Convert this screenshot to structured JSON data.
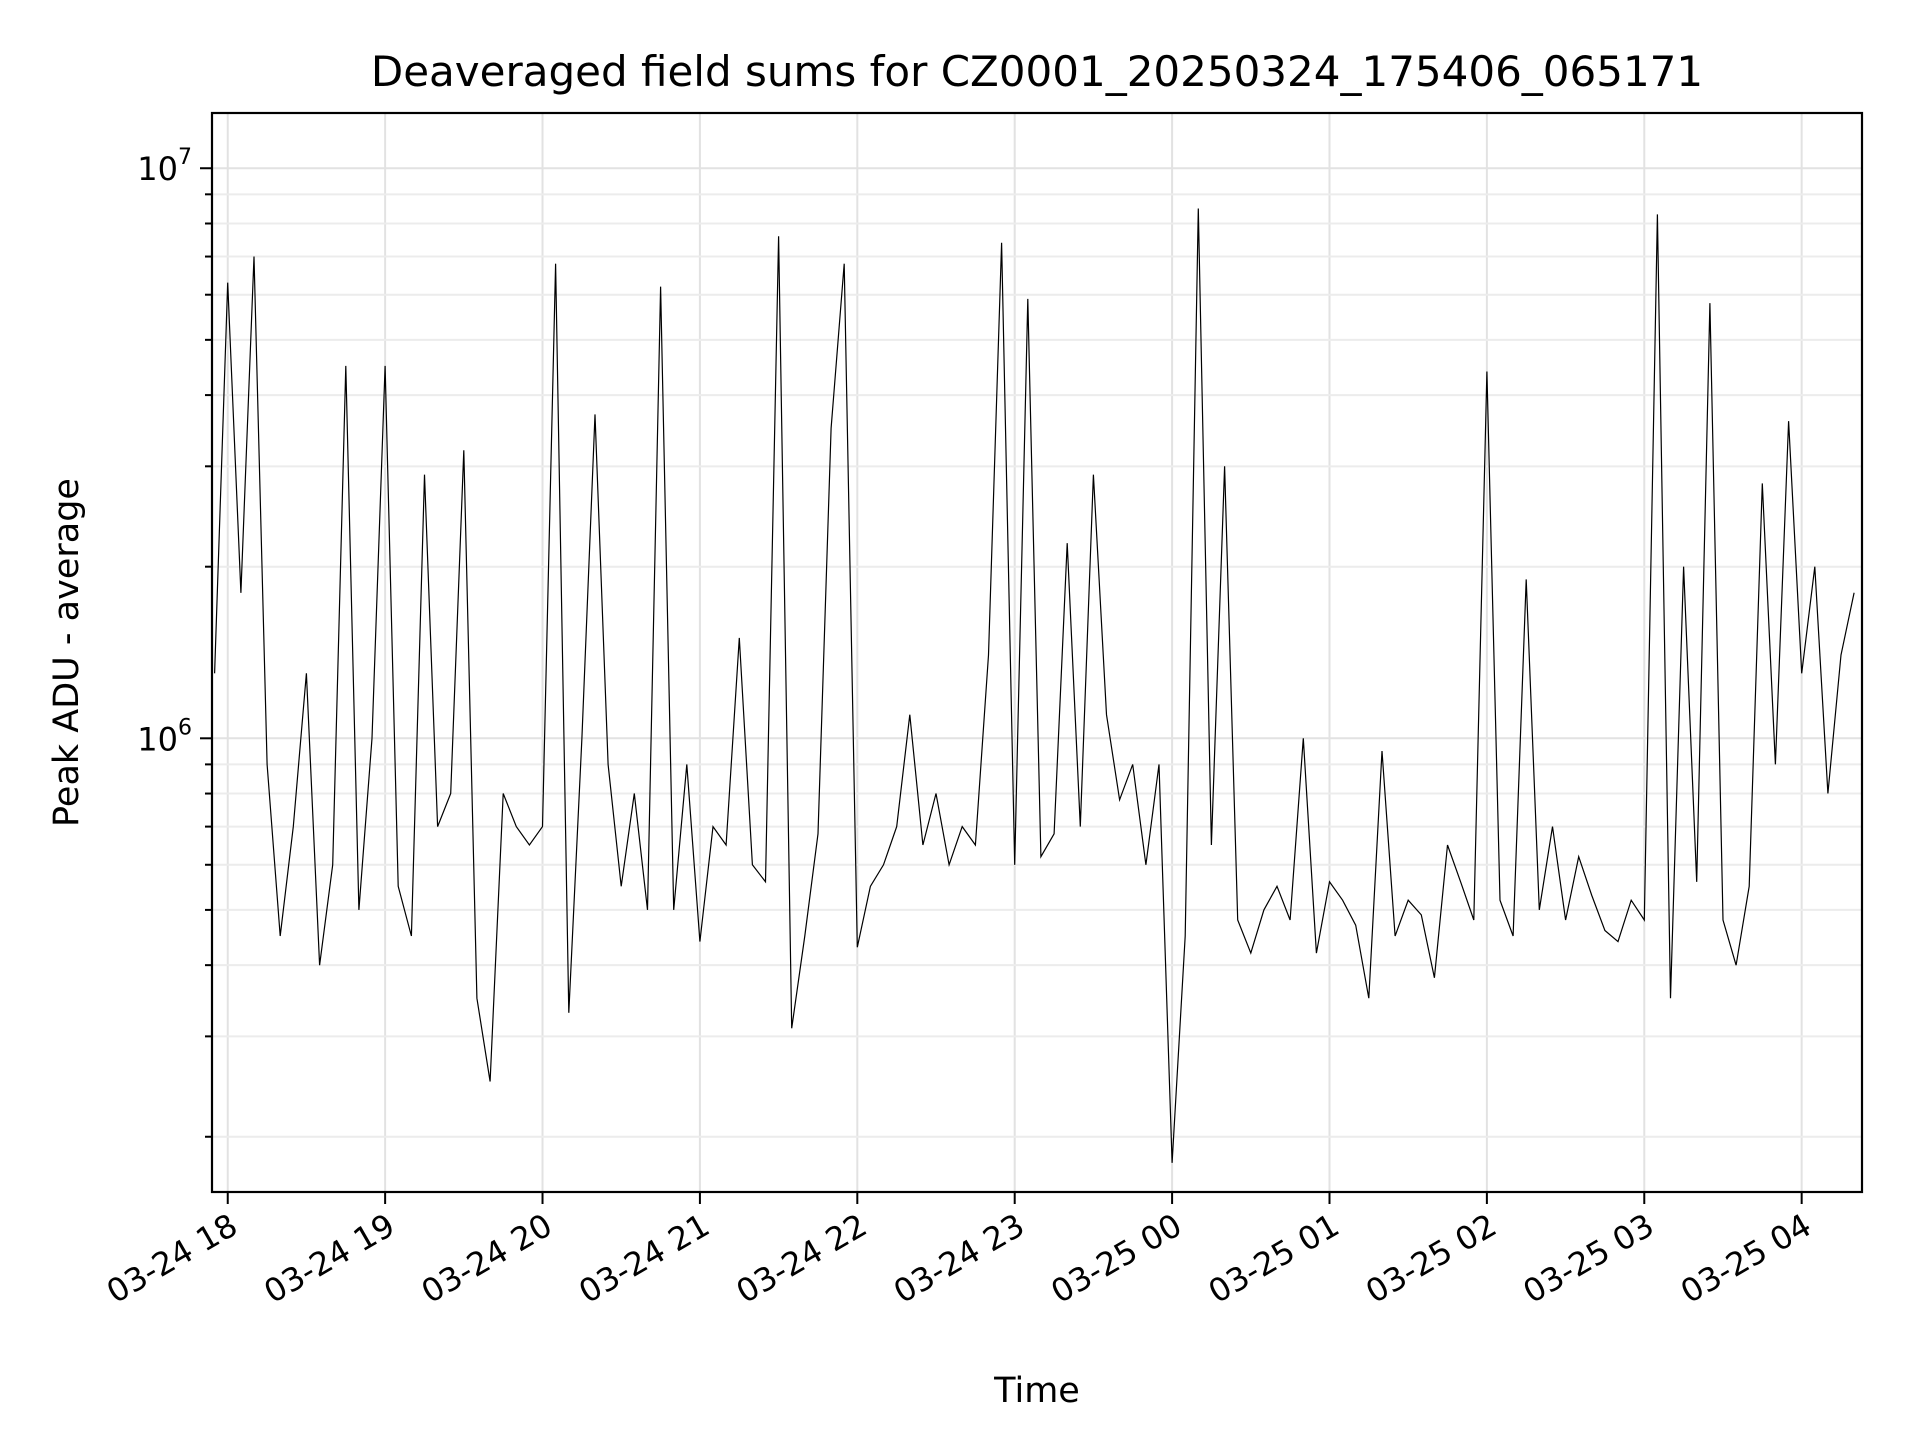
{
  "chart_data": {
    "type": "line",
    "title": "Deaveraged field sums for CZ0001_20250324_175406_065171",
    "xlabel": "Time",
    "ylabel": "Peak ADU - average",
    "yscale": "log",
    "ylim": [
      160000,
      12500000
    ],
    "xlim": [
      "2025-03-24 17:54",
      "2025-03-25 04:23"
    ],
    "grid": true,
    "x_ticks": [
      {
        "value": "2025-03-24 18:00",
        "label": "03-24 18"
      },
      {
        "value": "2025-03-24 19:00",
        "label": "03-24 19"
      },
      {
        "value": "2025-03-24 20:00",
        "label": "03-24 20"
      },
      {
        "value": "2025-03-24 21:00",
        "label": "03-24 21"
      },
      {
        "value": "2025-03-24 22:00",
        "label": "03-24 22"
      },
      {
        "value": "2025-03-24 23:00",
        "label": "03-24 23"
      },
      {
        "value": "2025-03-25 00:00",
        "label": "03-25 00"
      },
      {
        "value": "2025-03-25 01:00",
        "label": "03-25 01"
      },
      {
        "value": "2025-03-25 02:00",
        "label": "03-25 02"
      },
      {
        "value": "2025-03-25 03:00",
        "label": "03-25 03"
      },
      {
        "value": "2025-03-25 04:00",
        "label": "03-25 04"
      }
    ],
    "y_ticks": [
      {
        "value": 1000000,
        "base": "10",
        "exp": "6"
      },
      {
        "value": 10000000,
        "base": "10",
        "exp": "7"
      }
    ],
    "series": [
      {
        "color": "#000000",
        "x": [
          "2025-03-24 17:55",
          "2025-03-24 18:00",
          "2025-03-24 18:05",
          "2025-03-24 18:10",
          "2025-03-24 18:15",
          "2025-03-24 18:20",
          "2025-03-24 18:25",
          "2025-03-24 18:30",
          "2025-03-24 18:35",
          "2025-03-24 18:40",
          "2025-03-24 18:45",
          "2025-03-24 18:50",
          "2025-03-24 18:55",
          "2025-03-24 19:00",
          "2025-03-24 19:05",
          "2025-03-24 19:10",
          "2025-03-24 19:15",
          "2025-03-24 19:20",
          "2025-03-24 19:25",
          "2025-03-24 19:30",
          "2025-03-24 19:35",
          "2025-03-24 19:40",
          "2025-03-24 19:45",
          "2025-03-24 19:50",
          "2025-03-24 19:55",
          "2025-03-24 20:00",
          "2025-03-24 20:05",
          "2025-03-24 20:10",
          "2025-03-24 20:15",
          "2025-03-24 20:20",
          "2025-03-24 20:25",
          "2025-03-24 20:30",
          "2025-03-24 20:35",
          "2025-03-24 20:40",
          "2025-03-24 20:45",
          "2025-03-24 20:50",
          "2025-03-24 20:55",
          "2025-03-24 21:00",
          "2025-03-24 21:05",
          "2025-03-24 21:10",
          "2025-03-24 21:15",
          "2025-03-24 21:20",
          "2025-03-24 21:25",
          "2025-03-24 21:30",
          "2025-03-24 21:35",
          "2025-03-24 21:40",
          "2025-03-24 21:45",
          "2025-03-24 21:50",
          "2025-03-24 21:55",
          "2025-03-24 22:00",
          "2025-03-24 22:05",
          "2025-03-24 22:10",
          "2025-03-24 22:15",
          "2025-03-24 22:20",
          "2025-03-24 22:25",
          "2025-03-24 22:30",
          "2025-03-24 22:35",
          "2025-03-24 22:40",
          "2025-03-24 22:45",
          "2025-03-24 22:50",
          "2025-03-24 22:55",
          "2025-03-24 23:00",
          "2025-03-24 23:05",
          "2025-03-24 23:10",
          "2025-03-24 23:15",
          "2025-03-24 23:20",
          "2025-03-24 23:25",
          "2025-03-24 23:30",
          "2025-03-24 23:35",
          "2025-03-24 23:40",
          "2025-03-24 23:45",
          "2025-03-24 23:50",
          "2025-03-24 23:55",
          "2025-03-25 00:00",
          "2025-03-25 00:05",
          "2025-03-25 00:10",
          "2025-03-25 00:15",
          "2025-03-25 00:20",
          "2025-03-25 00:25",
          "2025-03-25 00:30",
          "2025-03-25 00:35",
          "2025-03-25 00:40",
          "2025-03-25 00:45",
          "2025-03-25 00:50",
          "2025-03-25 00:55",
          "2025-03-25 01:00",
          "2025-03-25 01:05",
          "2025-03-25 01:10",
          "2025-03-25 01:15",
          "2025-03-25 01:20",
          "2025-03-25 01:25",
          "2025-03-25 01:30",
          "2025-03-25 01:35",
          "2025-03-25 01:40",
          "2025-03-25 01:45",
          "2025-03-25 01:50",
          "2025-03-25 01:55",
          "2025-03-25 02:00",
          "2025-03-25 02:05",
          "2025-03-25 02:10",
          "2025-03-25 02:15",
          "2025-03-25 02:20",
          "2025-03-25 02:25",
          "2025-03-25 02:30",
          "2025-03-25 02:35",
          "2025-03-25 02:40",
          "2025-03-25 02:45",
          "2025-03-25 02:50",
          "2025-03-25 02:55",
          "2025-03-25 03:00",
          "2025-03-25 03:05",
          "2025-03-25 03:10",
          "2025-03-25 03:15",
          "2025-03-25 03:20",
          "2025-03-25 03:25",
          "2025-03-25 03:30",
          "2025-03-25 03:35",
          "2025-03-25 03:40",
          "2025-03-25 03:45",
          "2025-03-25 03:50",
          "2025-03-25 03:55",
          "2025-03-25 04:00",
          "2025-03-25 04:05",
          "2025-03-25 04:10",
          "2025-03-25 04:15",
          "2025-03-25 04:20"
        ],
        "y": [
          1300000,
          6300000,
          1800000,
          7000000,
          900000,
          450000,
          700000,
          1300000,
          400000,
          600000,
          4500000,
          500000,
          1000000,
          4500000,
          550000,
          450000,
          2900000,
          700000,
          800000,
          3200000,
          350000,
          250000,
          800000,
          700000,
          650000,
          700000,
          6800000,
          330000,
          1000000,
          3700000,
          900000,
          550000,
          800000,
          500000,
          6200000,
          500000,
          900000,
          440000,
          700000,
          650000,
          1500000,
          600000,
          560000,
          7600000,
          310000,
          450000,
          680000,
          3500000,
          6800000,
          430000,
          550000,
          600000,
          700000,
          1100000,
          650000,
          800000,
          600000,
          700000,
          650000,
          1400000,
          7400000,
          600000,
          5900000,
          620000,
          680000,
          2200000,
          700000,
          2900000,
          1100000,
          780000,
          900000,
          600000,
          900000,
          180000,
          450000,
          8500000,
          650000,
          3000000,
          480000,
          420000,
          500000,
          550000,
          480000,
          1000000,
          420000,
          560000,
          520000,
          470000,
          350000,
          950000,
          450000,
          520000,
          490000,
          380000,
          650000,
          560000,
          480000,
          4400000,
          520000,
          450000,
          1900000,
          500000,
          700000,
          480000,
          620000,
          530000,
          460000,
          440000,
          520000,
          480000,
          8300000,
          350000,
          2000000,
          560000,
          5800000,
          480000,
          400000,
          550000,
          2800000,
          900000,
          3600000,
          1300000,
          2000000,
          800000,
          1400000,
          1800000
        ]
      }
    ]
  }
}
